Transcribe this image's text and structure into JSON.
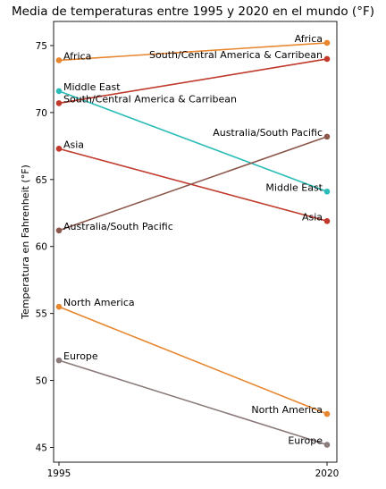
{
  "chart_data": {
    "type": "line",
    "title": "Media de temperaturas entre 1995 y 2020 en el mundo (°F)",
    "xlabel": "",
    "ylabel": "Temperatura en Fahrenheit (°F)",
    "x": [
      1995,
      2020
    ],
    "x_tick_labels": [
      "1995",
      "2020"
    ],
    "y_ticks": [
      45,
      50,
      55,
      60,
      65,
      70,
      75
    ],
    "ylim": [
      43.9,
      76.8
    ],
    "grid": false,
    "series": [
      {
        "name": "Africa",
        "values": [
          73.9,
          75.2
        ],
        "color": "#e8862e",
        "labels": [
          "Africa",
          "Africa"
        ]
      },
      {
        "name": "Middle East",
        "values": [
          71.6,
          64.1
        ],
        "color": "#2bbcb9",
        "labels": [
          "Middle East",
          "Middle East"
        ]
      },
      {
        "name": "South/Central America & Carribean",
        "values": [
          70.7,
          74.0
        ],
        "color": "#c0392b",
        "labels": [
          "South/Central America & Carribean",
          "South/Central America & Carribean"
        ]
      },
      {
        "name": "Asia",
        "values": [
          67.3,
          61.9
        ],
        "color": "#c0392b",
        "labels": [
          "Asia",
          "Asia"
        ]
      },
      {
        "name": "Australia/South Pacific",
        "values": [
          61.2,
          68.2
        ],
        "color": "#8c564b",
        "labels": [
          "Australia/South Pacific",
          "Australia/South Pacific"
        ]
      },
      {
        "name": "North America",
        "values": [
          55.5,
          47.5
        ],
        "color": "#e8862e",
        "labels": [
          "North America",
          "North America"
        ]
      },
      {
        "name": "Europe",
        "values": [
          51.5,
          45.2
        ],
        "color": "#8c7b7b",
        "labels": [
          "Europe",
          "Europe"
        ]
      }
    ]
  }
}
